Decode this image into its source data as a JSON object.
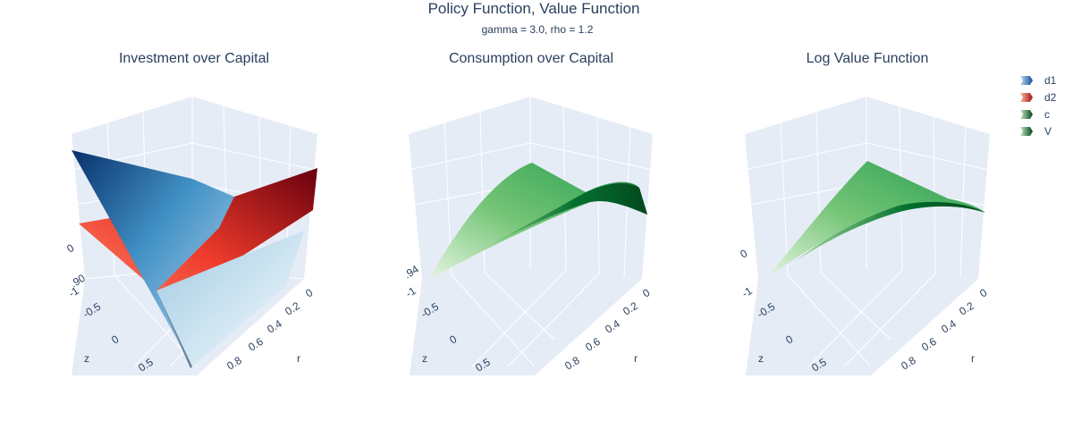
{
  "figure": {
    "title": "Policy Function, Value Function",
    "subtitle": "gamma = 3.0, rho = 1.2"
  },
  "chart_data": [
    {
      "type": "surface",
      "title": "Investment over Capital",
      "x_axis": {
        "label": "r",
        "tick_labels": [
          "0",
          "0.2",
          "0.4",
          "0.6",
          "0.8"
        ]
      },
      "z_axis_label_shown": "z",
      "y_axis": {
        "label": "z",
        "tick_labels": [
          "-1",
          "-0.5",
          "0",
          "0.5"
        ]
      },
      "vertical_tick_labels": [
        "0",
        ".90"
      ],
      "series": [
        {
          "name": "d1",
          "colorscale": "Blues"
        },
        {
          "name": "d2",
          "colorscale": "Reds"
        }
      ]
    },
    {
      "type": "surface",
      "title": "Consumption over Capital",
      "x_axis": {
        "label": "r",
        "tick_labels": [
          "0",
          "0.2",
          "0.4",
          "0.6",
          "0.8"
        ]
      },
      "y_axis": {
        "label": "z",
        "tick_labels": [
          "-1",
          "-0.5",
          "0",
          "0.5"
        ]
      },
      "vertical_tick_labels": [
        ".94"
      ],
      "series": [
        {
          "name": "c",
          "colorscale": "Greens"
        }
      ]
    },
    {
      "type": "surface",
      "title": "Log Value Function",
      "x_axis": {
        "label": "r",
        "tick_labels": [
          "0",
          "0.2",
          "0.4",
          "0.6",
          "0.8"
        ]
      },
      "y_axis": {
        "label": "z",
        "tick_labels": [
          "-1",
          "-0.5",
          "0",
          "0.5"
        ]
      },
      "vertical_tick_labels": [
        "0"
      ],
      "series": [
        {
          "name": "V",
          "colorscale": "Greens"
        }
      ]
    }
  ],
  "legend": [
    {
      "name": "d1",
      "color": "#2171b5",
      "light": "#9ecae1"
    },
    {
      "name": "d2",
      "color": "#cb181d",
      "light": "#fc9272"
    },
    {
      "name": "c",
      "color": "#238b45",
      "light": "#a1d99b"
    },
    {
      "name": "V",
      "color": "#238b45",
      "light": "#a1d99b"
    }
  ],
  "colors": {
    "scene_bg": "#e5ecf6",
    "grid": "#ffffff",
    "text": "#2a3f5f"
  }
}
